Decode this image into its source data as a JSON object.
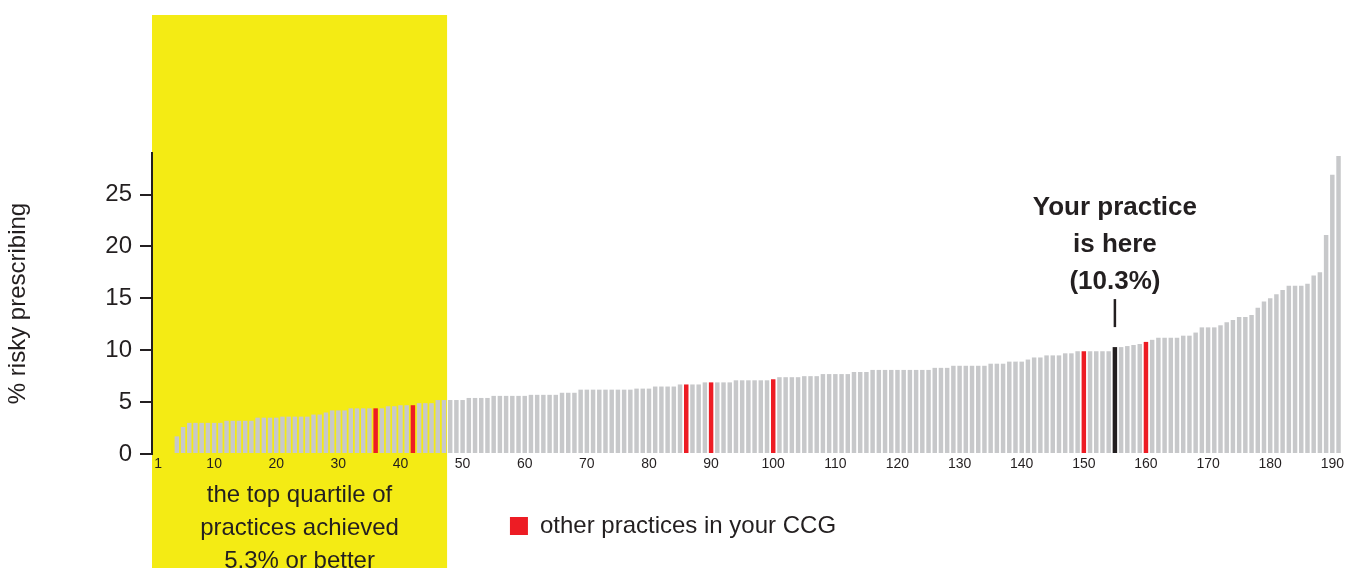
{
  "chart_data": {
    "type": "bar",
    "ylabel": "% risky prescribing",
    "x": [
      4,
      5,
      6,
      7,
      8,
      9,
      10,
      11,
      12,
      13,
      14,
      15,
      16,
      17,
      18,
      19,
      20,
      21,
      22,
      23,
      24,
      25,
      26,
      27,
      28,
      29,
      30,
      31,
      32,
      33,
      34,
      35,
      36,
      37,
      38,
      39,
      40,
      41,
      42,
      43,
      44,
      45,
      46,
      47,
      48,
      49,
      50,
      51,
      52,
      53,
      54,
      55,
      56,
      57,
      58,
      59,
      60,
      61,
      62,
      63,
      64,
      65,
      66,
      67,
      68,
      69,
      70,
      71,
      72,
      73,
      74,
      75,
      76,
      77,
      78,
      79,
      80,
      81,
      82,
      83,
      84,
      85,
      86,
      87,
      88,
      89,
      90,
      91,
      92,
      93,
      94,
      95,
      96,
      97,
      98,
      99,
      100,
      101,
      102,
      103,
      104,
      105,
      106,
      107,
      108,
      109,
      110,
      111,
      112,
      113,
      114,
      115,
      116,
      117,
      118,
      119,
      120,
      121,
      122,
      123,
      124,
      125,
      126,
      127,
      128,
      129,
      130,
      131,
      132,
      133,
      134,
      135,
      136,
      137,
      138,
      139,
      140,
      141,
      142,
      143,
      144,
      145,
      146,
      147,
      148,
      149,
      150,
      151,
      152,
      153,
      154,
      155,
      156,
      157,
      158,
      159,
      160,
      161,
      162,
      163,
      164,
      165,
      166,
      167,
      168,
      169,
      170,
      171,
      172,
      173,
      174,
      175,
      176,
      177,
      178,
      179,
      180,
      181,
      182,
      183,
      184,
      185,
      186,
      187,
      188,
      189,
      190,
      191
    ],
    "series": [
      {
        "color": "#c7c8ca",
        "values": [
          1.7,
          2.6,
          3.0,
          3.0,
          3.0,
          3.0,
          3.0,
          3.0,
          3.2,
          3.2,
          3.2,
          3.2,
          3.2,
          3.5,
          3.5,
          3.5,
          3.5,
          3.6,
          3.6,
          3.6,
          3.6,
          3.6,
          3.8,
          3.8,
          4.0,
          4.2,
          4.2,
          4.2,
          4.4,
          4.4,
          4.4,
          4.4,
          null,
          4.4,
          4.6,
          4.6,
          4.7,
          4.7,
          null,
          4.9,
          4.9,
          4.9,
          5.2,
          5.2,
          5.2,
          5.2,
          5.2,
          5.4,
          5.4,
          5.4,
          5.4,
          5.6,
          5.6,
          5.6,
          5.6,
          5.6,
          5.6,
          5.7,
          5.7,
          5.7,
          5.7,
          5.7,
          5.9,
          5.9,
          5.9,
          6.2,
          6.2,
          6.2,
          6.2,
          6.2,
          6.2,
          6.2,
          6.2,
          6.2,
          6.3,
          6.3,
          6.3,
          6.5,
          6.5,
          6.5,
          6.5,
          6.7,
          null,
          6.7,
          6.7,
          6.9,
          null,
          6.9,
          6.9,
          6.9,
          7.1,
          7.1,
          7.1,
          7.1,
          7.1,
          7.1,
          null,
          7.4,
          7.4,
          7.4,
          7.4,
          7.5,
          7.5,
          7.5,
          7.7,
          7.7,
          7.7,
          7.7,
          7.7,
          7.9,
          7.9,
          7.9,
          8.1,
          8.1,
          8.1,
          8.1,
          8.1,
          8.1,
          8.1,
          8.1,
          8.1,
          8.1,
          8.3,
          8.3,
          8.3,
          8.5,
          8.5,
          8.5,
          8.5,
          8.5,
          8.5,
          8.7,
          8.7,
          8.7,
          8.9,
          8.9,
          8.9,
          9.1,
          9.3,
          9.3,
          9.5,
          9.5,
          9.5,
          9.7,
          9.7,
          9.9,
          null,
          9.9,
          9.9,
          9.9,
          9.9,
          null,
          10.3,
          10.4,
          10.5,
          10.6,
          null,
          11.0,
          11.2,
          11.2,
          11.2,
          11.2,
          11.4,
          11.4,
          11.7,
          12.2,
          12.2,
          12.2,
          12.4,
          12.7,
          12.9,
          13.2,
          13.2,
          13.4,
          14.1,
          14.7,
          15.0,
          15.4,
          15.8,
          16.2,
          16.2,
          16.2,
          16.4,
          17.2,
          17.5,
          21.1,
          26.9,
          28.7
        ]
      },
      {
        "name": "other practices in your CCG",
        "color": "#ed1c24",
        "x": [
          36,
          42,
          86,
          90,
          100,
          150,
          160
        ],
        "values": [
          4.4,
          4.7,
          6.7,
          6.9,
          7.2,
          9.9,
          10.8
        ]
      },
      {
        "color": "#231f20",
        "x": [
          155
        ],
        "values": [
          10.3
        ]
      }
    ],
    "xlim": [
      0,
      191.5
    ],
    "xticks": [
      1,
      10,
      20,
      30,
      40,
      50,
      60,
      70,
      80,
      90,
      100,
      110,
      120,
      130,
      140,
      150,
      160,
      170,
      180,
      190
    ],
    "ylim": [
      0,
      29
    ],
    "yticks": [
      0,
      5,
      10,
      15,
      20,
      25
    ],
    "bands": [
      {
        "axis": "x",
        "from": 0,
        "to": 47.5,
        "label": "the top quartile of practices achieved 5.3% or better",
        "color": "#f4eb14"
      }
    ],
    "annotations": [
      {
        "text": "Your practice is here (10.3%)",
        "x": 155,
        "y": 10.3
      }
    ],
    "legend": "bottom"
  }
}
